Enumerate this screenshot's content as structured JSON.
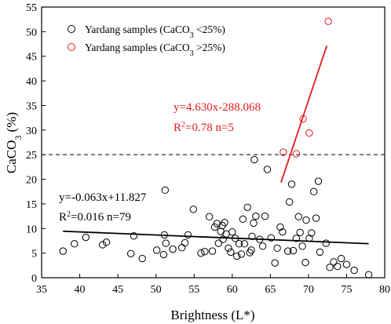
{
  "chart_data": {
    "type": "scatter",
    "xlabel": "Brightness (L*)",
    "ylabel_main": "CaCO",
    "ylabel_sub": "3",
    "ylabel_unit": " (%)",
    "xlim": [
      35,
      80
    ],
    "ylim": [
      0,
      55
    ],
    "x_ticks": [
      35,
      40,
      45,
      50,
      55,
      60,
      65,
      70,
      75,
      80
    ],
    "y_ticks": [
      0,
      5,
      10,
      15,
      20,
      25,
      30,
      35,
      40,
      45,
      50,
      55
    ],
    "grid": false,
    "legend_placement": "top-left",
    "reference_line": {
      "y": 25,
      "style": "dashed",
      "color": "#000000"
    },
    "series": [
      {
        "name_prefix": "Yardang samples (CaCO",
        "name_sub": "3",
        "name_suffix": " <25%)",
        "color": "#000000",
        "marker": "open-circle",
        "points": [
          [
            37.8,
            5.4
          ],
          [
            39.3,
            6.9
          ],
          [
            40.8,
            8.2
          ],
          [
            43.0,
            6.7
          ],
          [
            43.5,
            7.2
          ],
          [
            46.7,
            4.9
          ],
          [
            47.1,
            8.5
          ],
          [
            48.2,
            3.9
          ],
          [
            50.1,
            5.6
          ],
          [
            51.0,
            4.7
          ],
          [
            51.1,
            8.7
          ],
          [
            51.2,
            17.8
          ],
          [
            51.3,
            7.0
          ],
          [
            52.2,
            5.8
          ],
          [
            53.4,
            6.1
          ],
          [
            53.8,
            7.1
          ],
          [
            54.2,
            8.7
          ],
          [
            54.9,
            13.9
          ],
          [
            55.9,
            5.0
          ],
          [
            56.4,
            5.3
          ],
          [
            57.0,
            12.4
          ],
          [
            57.4,
            5.4
          ],
          [
            57.7,
            10.3
          ],
          [
            58.0,
            11.0
          ],
          [
            58.2,
            7.0
          ],
          [
            58.5,
            9.4
          ],
          [
            58.7,
            10.6
          ],
          [
            58.8,
            7.8
          ],
          [
            59.0,
            11.2
          ],
          [
            59.2,
            8.9
          ],
          [
            59.5,
            6.0
          ],
          [
            59.8,
            5.2
          ],
          [
            60.0,
            9.3
          ],
          [
            60.4,
            8.0
          ],
          [
            60.6,
            4.4
          ],
          [
            60.9,
            6.9
          ],
          [
            61.2,
            4.8
          ],
          [
            61.4,
            11.9
          ],
          [
            61.6,
            6.9
          ],
          [
            62.0,
            14.3
          ],
          [
            62.3,
            5.1
          ],
          [
            62.5,
            5.6
          ],
          [
            62.6,
            8.4
          ],
          [
            62.8,
            11.1
          ],
          [
            62.9,
            24.0
          ],
          [
            63.1,
            12.5
          ],
          [
            63.6,
            7.8
          ],
          [
            64.0,
            6.4
          ],
          [
            64.3,
            12.5
          ],
          [
            64.6,
            22.0
          ],
          [
            65.1,
            8.1
          ],
          [
            65.6,
            3.0
          ],
          [
            65.9,
            6.0
          ],
          [
            66.3,
            10.3
          ],
          [
            66.6,
            9.3
          ],
          [
            67.3,
            5.4
          ],
          [
            67.5,
            15.4
          ],
          [
            67.8,
            19.0
          ],
          [
            68.0,
            5.5
          ],
          [
            68.4,
            8.0
          ],
          [
            68.7,
            12.4
          ],
          [
            68.9,
            9.2
          ],
          [
            69.2,
            6.4
          ],
          [
            69.6,
            3.1
          ],
          [
            69.7,
            11.7
          ],
          [
            70.1,
            8.0
          ],
          [
            70.4,
            9.1
          ],
          [
            70.7,
            17.5
          ],
          [
            71.0,
            12.1
          ],
          [
            71.3,
            19.6
          ],
          [
            71.5,
            5.2
          ],
          [
            72.3,
            7.0
          ],
          [
            72.8,
            2.1
          ],
          [
            73.3,
            3.2
          ],
          [
            73.8,
            2.3
          ],
          [
            74.3,
            3.9
          ],
          [
            75.0,
            2.7
          ],
          [
            76.0,
            1.5
          ],
          [
            77.9,
            0.6
          ]
        ],
        "fit": {
          "x_range": [
            37.8,
            77.9
          ],
          "slope": -0.063,
          "intercept": 11.827,
          "line1": "y=-0.063x+11.827",
          "line2_pre": "R",
          "line2_sup": "2",
          "line2_post": "=0.016  n=79"
        }
      },
      {
        "name_prefix": "Yardang samples (CaCO",
        "name_sub": "3",
        "name_suffix": " >25%)",
        "color": "#e21b1b",
        "marker": "open-circle",
        "points": [
          [
            66.7,
            25.5
          ],
          [
            68.4,
            25.2
          ],
          [
            69.3,
            32.3
          ],
          [
            70.1,
            29.4
          ],
          [
            72.6,
            52.1
          ]
        ],
        "fit": {
          "x_range": [
            66.4,
            72.4
          ],
          "slope": 4.63,
          "intercept": -288.068,
          "line1": "y=4.630x-288.068",
          "line2_pre": "R",
          "line2_sup": "2",
          "line2_post": "=0.78  n=5"
        }
      }
    ]
  }
}
